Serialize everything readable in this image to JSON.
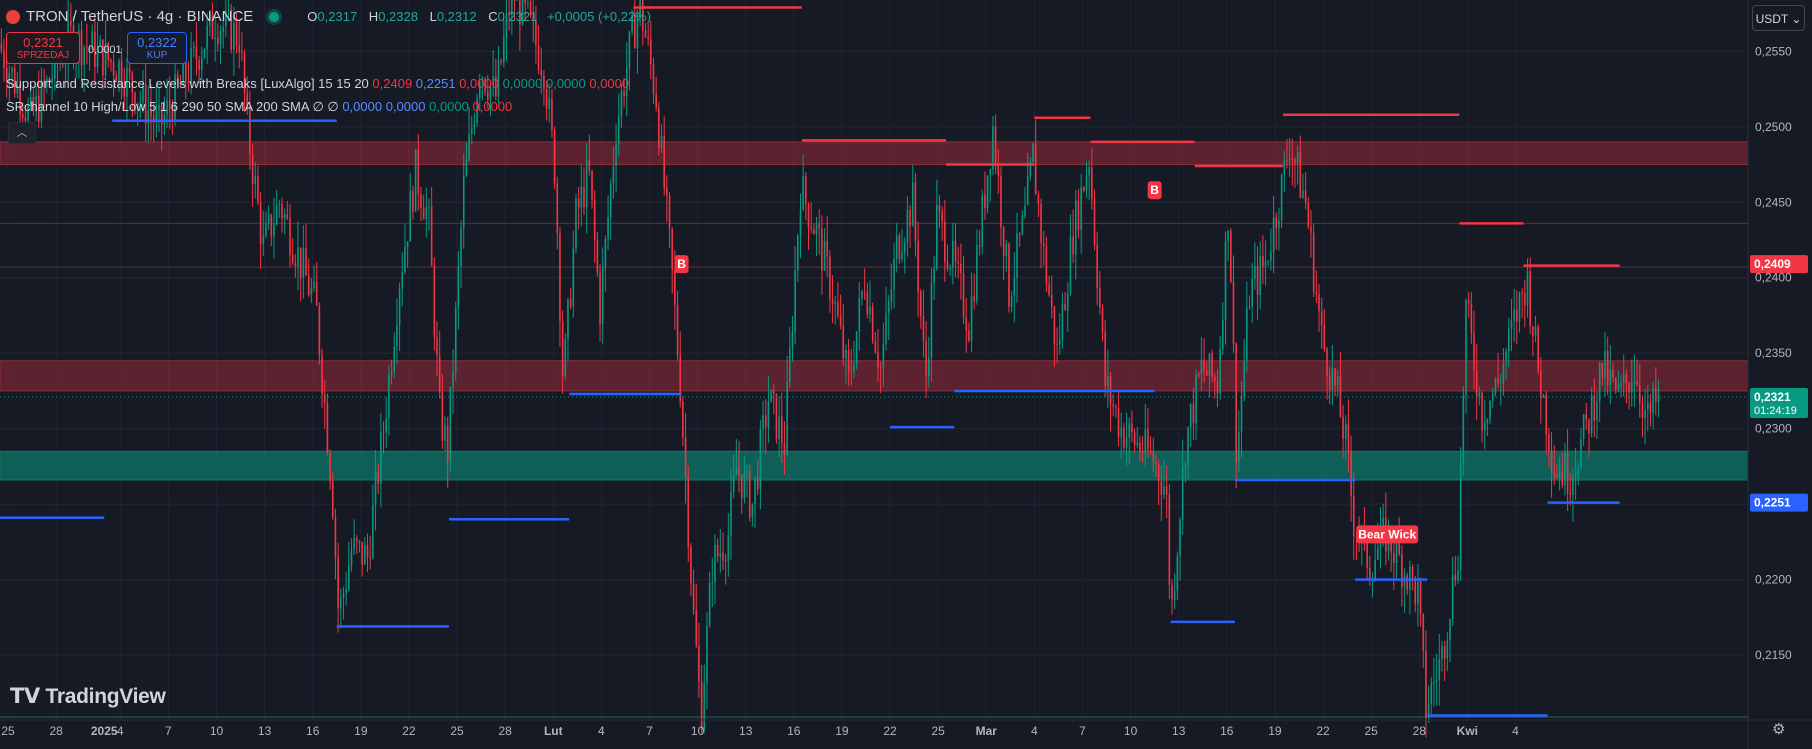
{
  "header": {
    "title": "TRON / TetherUS · 4g · BINANCE",
    "ohlc": [
      {
        "k": "O",
        "v": "0,2317"
      },
      {
        "k": "H",
        "v": "0,2328"
      },
      {
        "k": "L",
        "v": "0,2312"
      },
      {
        "k": "C",
        "v": "0,2321"
      }
    ],
    "change": "+0,0005 (+0,22%)"
  },
  "trade": {
    "sell_price": "0,2321",
    "sell_label": "SPRZEDAJ",
    "spread": "0,0001",
    "buy_price": "0,2322",
    "buy_label": "KUP"
  },
  "indicators": {
    "ind1_name": "Support and Resistance Levels with Breaks [LuxAlgo] 15 15 20",
    "ind1_values": [
      "0,2409",
      "0,2251",
      "0,0000",
      "0,0000",
      "0,0000",
      "0,0000"
    ],
    "ind2_name": "SRchannel 10 High/Low 5 1 6 290 50 SMA 200 SMA",
    "ind2_glyphs": "∅ ∅",
    "ind2_values": [
      "0,0000",
      "0,0000",
      "0,0000",
      "0,0000"
    ]
  },
  "currency": "USDT",
  "brand": "TradingView",
  "colors": {
    "up": "#089981",
    "down": "#f23645",
    "support": "#2962ff",
    "resistance": "#f23645",
    "bg": "#161a25"
  },
  "chart_data": {
    "type": "candlestick",
    "y_axis": {
      "ticks": [
        0.215,
        0.22,
        0.225,
        0.23,
        0.235,
        0.24,
        0.245,
        0.25,
        0.255
      ],
      "tick_labels": [
        "0,2150",
        "0,2200",
        "0,2250",
        "0,2300",
        "0,2350",
        "0,2400",
        "0,2450",
        "0,2500",
        "0,2550"
      ],
      "range": [
        0.2107,
        0.2584
      ]
    },
    "x_axis": {
      "tick_labels": [
        "25",
        "28",
        "2025",
        "4",
        "7",
        "10",
        "13",
        "16",
        "19",
        "22",
        "25",
        "28",
        "Lut",
        "4",
        "7",
        "10",
        "13",
        "16",
        "19",
        "22",
        "25",
        "Mar",
        "4",
        "7",
        "10",
        "13",
        "16",
        "19",
        "22",
        "25",
        "28",
        "Kwi",
        "4"
      ],
      "range_days": [
        -7.5,
        101.5
      ]
    },
    "price_marks": [
      {
        "label": "0,2409",
        "value": 0.2409,
        "color": "#f23645"
      },
      {
        "label": "0,2251",
        "value": 0.2251,
        "color": "#2962ff"
      },
      {
        "label": "0,2321",
        "sub": "01:24:19",
        "value": 0.2321,
        "color": "#089981"
      }
    ],
    "last_price": 0.2321,
    "zones": [
      {
        "type": "resistance",
        "from": 0.2475,
        "to": 0.249
      },
      {
        "type": "resistance",
        "from": 0.2325,
        "to": 0.2345
      },
      {
        "type": "support",
        "from": 0.2266,
        "to": 0.2285
      }
    ],
    "thin_lines": [
      0.2436,
      0.2407,
      0.2109
    ],
    "resistance_segments": [
      {
        "x0": 32,
        "x1": 42.5,
        "y": 0.2579
      },
      {
        "x0": 42.5,
        "x1": 51.5,
        "y": 0.2491
      },
      {
        "x0": 51.5,
        "x1": 57,
        "y": 0.2475
      },
      {
        "x0": 57,
        "x1": 60.5,
        "y": 0.2506
      },
      {
        "x0": 60.5,
        "x1": 67,
        "y": 0.249
      },
      {
        "x0": 67,
        "x1": 72.5,
        "y": 0.2474
      },
      {
        "x0": 72.5,
        "x1": 83.5,
        "y": 0.2508
      },
      {
        "x0": 83.5,
        "x1": 87.5,
        "y": 0.2436
      },
      {
        "x0": 87.5,
        "x1": 93.5,
        "y": 0.2408
      }
    ],
    "support_segments": [
      {
        "x0": -7.5,
        "x1": -1,
        "y": 0.2241
      },
      {
        "x0": -0.5,
        "x1": 13.5,
        "y": 0.2504
      },
      {
        "x0": 13.5,
        "x1": 20.5,
        "y": 0.2169
      },
      {
        "x0": 20.5,
        "x1": 28,
        "y": 0.224
      },
      {
        "x0": 28,
        "x1": 35,
        "y": 0.2323
      },
      {
        "x0": 48,
        "x1": 52,
        "y": 0.2301
      },
      {
        "x0": 52,
        "x1": 61.5,
        "y": 0.2325
      },
      {
        "x0": 61.5,
        "x1": 64.5,
        "y": 0.2325
      },
      {
        "x0": 65.5,
        "x1": 69.5,
        "y": 0.2172
      },
      {
        "x0": 69.5,
        "x1": 77,
        "y": 0.2266
      },
      {
        "x0": 77,
        "x1": 81.5,
        "y": 0.22
      },
      {
        "x0": 81.5,
        "x1": 89,
        "y": 0.211
      },
      {
        "x0": 89,
        "x1": 93.5,
        "y": 0.2251
      }
    ],
    "labels": [
      {
        "text": "B",
        "x": 35,
        "y": 0.2409
      },
      {
        "text": "B",
        "x": 64.5,
        "y": 0.2458
      },
      {
        "text": "Bear Wick",
        "x": 79,
        "y": 0.223
      }
    ],
    "path": [
      [
        -7.5,
        0.2555
      ],
      [
        -5.5,
        0.2505
      ],
      [
        -3,
        0.256
      ],
      [
        0,
        0.254
      ],
      [
        2.5,
        0.25
      ],
      [
        6,
        0.257
      ],
      [
        7.5,
        0.256
      ],
      [
        8,
        0.25
      ],
      [
        9,
        0.242
      ],
      [
        10,
        0.245
      ],
      [
        11,
        0.242
      ],
      [
        12.3,
        0.238
      ],
      [
        13.3,
        0.226
      ],
      [
        13.7,
        0.2175
      ],
      [
        14.5,
        0.222
      ],
      [
        15.5,
        0.2215
      ],
      [
        16.5,
        0.23
      ],
      [
        17.5,
        0.24
      ],
      [
        18.5,
        0.247
      ],
      [
        19.3,
        0.244
      ],
      [
        20,
        0.231
      ],
      [
        20.5,
        0.2285
      ],
      [
        21.5,
        0.246
      ],
      [
        22.5,
        0.254
      ],
      [
        23.5,
        0.252
      ],
      [
        24.5,
        0.259
      ],
      [
        25.5,
        0.257
      ],
      [
        26.5,
        0.254
      ],
      [
        27.2,
        0.247
      ],
      [
        27.7,
        0.233
      ],
      [
        28.5,
        0.244
      ],
      [
        29.3,
        0.247
      ],
      [
        30,
        0.238
      ],
      [
        31,
        0.25
      ],
      [
        32,
        0.256
      ],
      [
        32.5,
        0.258
      ],
      [
        33.5,
        0.252
      ],
      [
        34.5,
        0.24
      ],
      [
        35,
        0.233
      ],
      [
        35.8,
        0.218
      ],
      [
        36.3,
        0.211
      ],
      [
        37,
        0.221
      ],
      [
        38,
        0.223
      ],
      [
        38.5,
        0.2275
      ],
      [
        39.5,
        0.225
      ],
      [
        40.5,
        0.232
      ],
      [
        41.5,
        0.229
      ],
      [
        42.5,
        0.246
      ],
      [
        43.5,
        0.243
      ],
      [
        44.5,
        0.239
      ],
      [
        45.5,
        0.233
      ],
      [
        46.5,
        0.24
      ],
      [
        47.5,
        0.234
      ],
      [
        48.5,
        0.242
      ],
      [
        49.5,
        0.245
      ],
      [
        50.3,
        0.233
      ],
      [
        51,
        0.244
      ],
      [
        52,
        0.241
      ],
      [
        53,
        0.237
      ],
      [
        54.5,
        0.25
      ],
      [
        55.5,
        0.239
      ],
      [
        56.5,
        0.244
      ],
      [
        57,
        0.248
      ],
      [
        57.6,
        0.242
      ],
      [
        58.5,
        0.235
      ],
      [
        59.5,
        0.243
      ],
      [
        60.5,
        0.248
      ],
      [
        61.5,
        0.233
      ],
      [
        62.5,
        0.23
      ],
      [
        63.5,
        0.229
      ],
      [
        64.5,
        0.228
      ],
      [
        65.3,
        0.226
      ],
      [
        65.6,
        0.2175
      ],
      [
        66.5,
        0.229
      ],
      [
        67.5,
        0.234
      ],
      [
        68.5,
        0.233
      ],
      [
        69.2,
        0.245
      ],
      [
        69.7,
        0.228
      ],
      [
        70.5,
        0.239
      ],
      [
        71.5,
        0.241
      ],
      [
        72.5,
        0.246
      ],
      [
        73,
        0.249
      ],
      [
        74,
        0.245
      ],
      [
        75,
        0.236
      ],
      [
        76,
        0.232
      ],
      [
        76.5,
        0.229
      ],
      [
        77,
        0.224
      ],
      [
        78,
        0.221
      ],
      [
        79,
        0.223
      ],
      [
        80,
        0.221
      ],
      [
        81,
        0.219
      ],
      [
        81.5,
        0.2115
      ],
      [
        82.5,
        0.215
      ],
      [
        83.5,
        0.222
      ],
      [
        84,
        0.238
      ],
      [
        85,
        0.231
      ],
      [
        86,
        0.233
      ],
      [
        87,
        0.237
      ],
      [
        87.8,
        0.24
      ],
      [
        88.5,
        0.234
      ],
      [
        89.5,
        0.2275
      ],
      [
        90.5,
        0.227
      ],
      [
        91.5,
        0.23
      ],
      [
        92.5,
        0.234
      ],
      [
        93.5,
        0.232
      ],
      [
        94.5,
        0.234
      ],
      [
        95.3,
        0.2305
      ],
      [
        96,
        0.2321
      ]
    ]
  }
}
